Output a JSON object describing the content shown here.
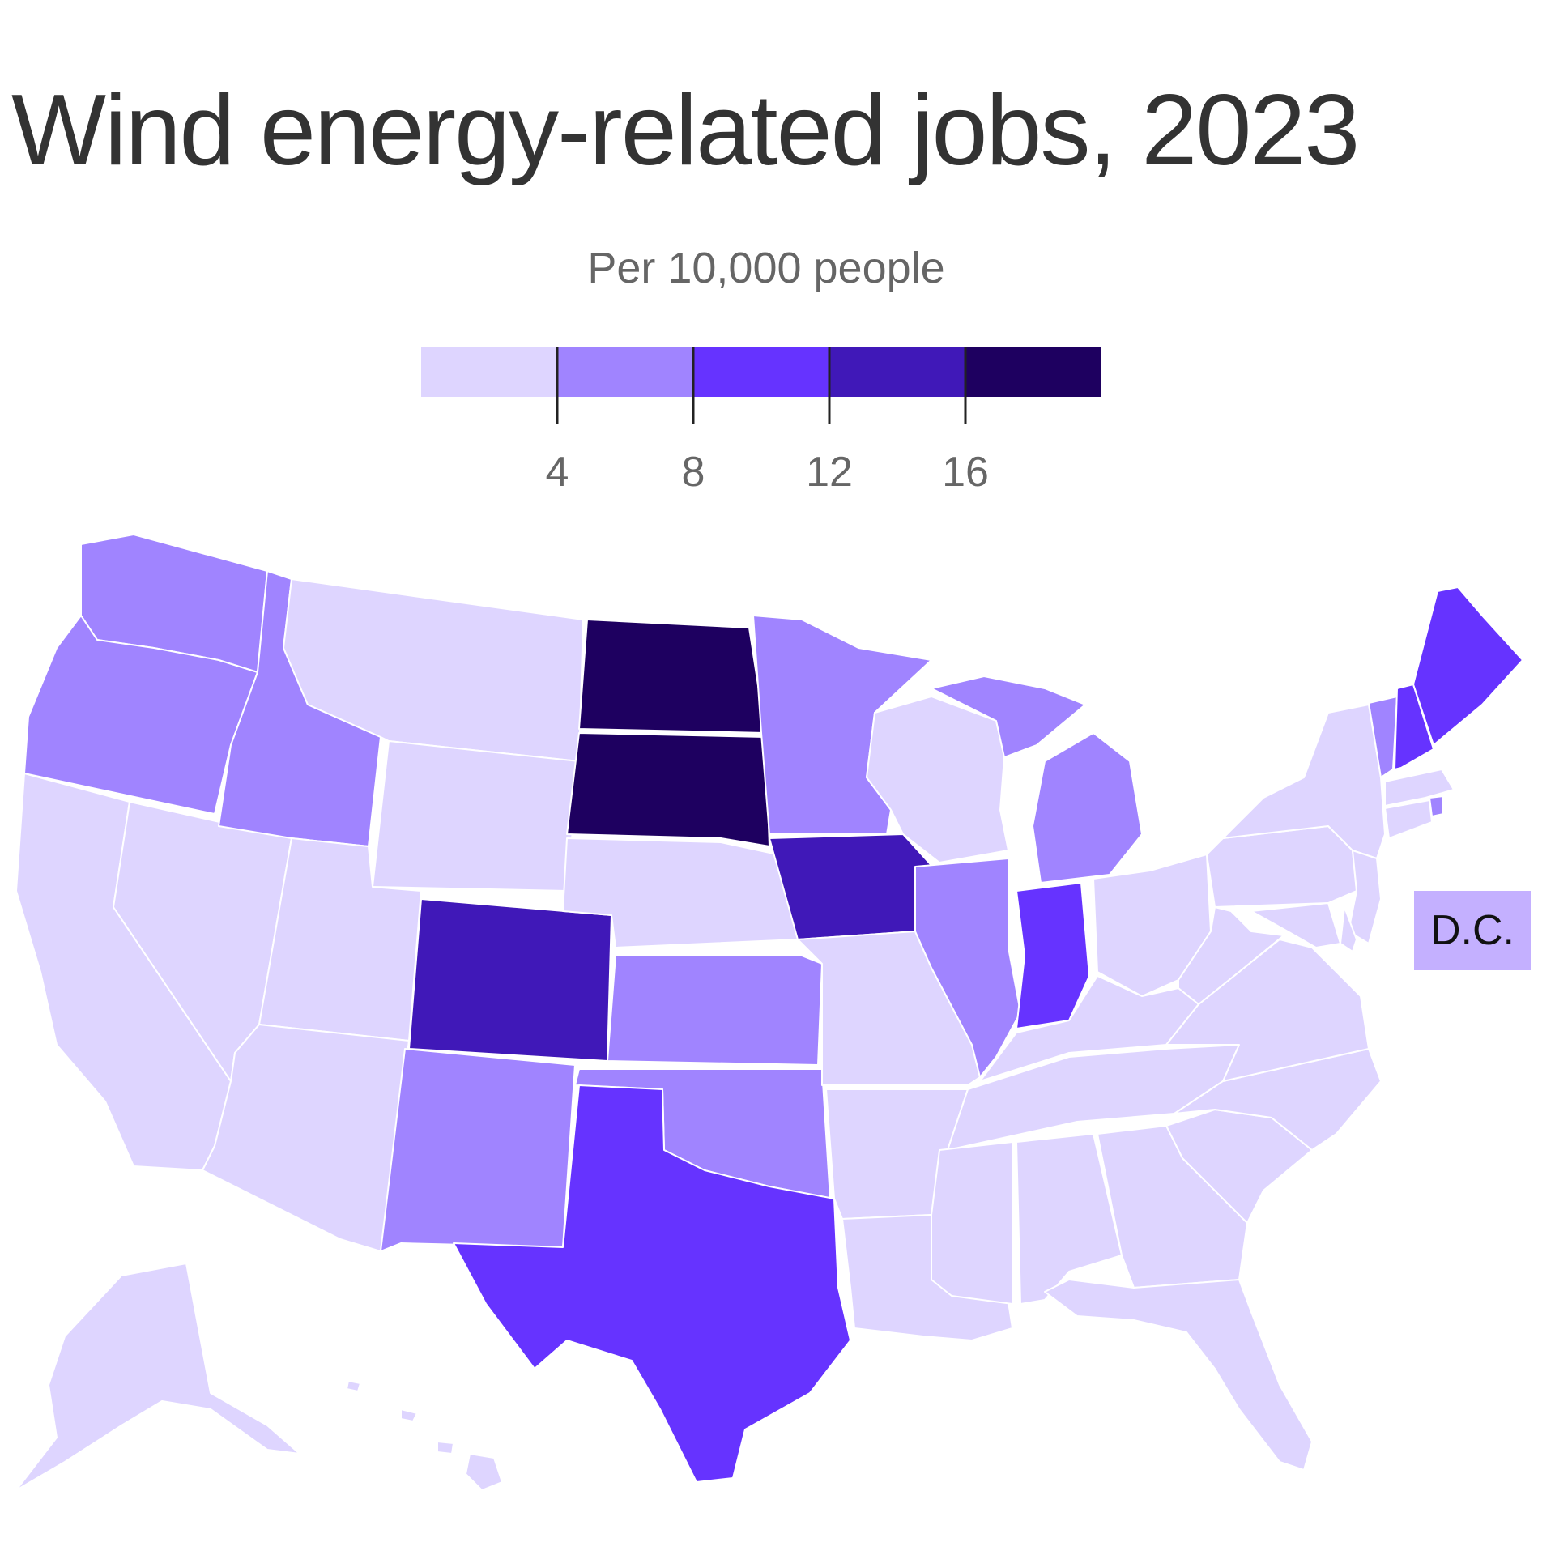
{
  "title": "Wind energy-related jobs, 2023",
  "subtitle": "Per 10,000 people",
  "legend": {
    "bins": [
      {
        "color": "#ded5ff"
      },
      {
        "color": "#a084ff"
      },
      {
        "color": "#6633ff"
      },
      {
        "color": "#4018b8"
      },
      {
        "color": "#1e0060"
      }
    ],
    "ticks": [
      "4",
      "8",
      "12",
      "16"
    ]
  },
  "dc_label": "D.C.",
  "map_data": {
    "type": "choropleth",
    "thresholds": [
      4,
      8,
      12,
      16
    ],
    "states": {
      "WA": 1,
      "OR": 1,
      "CA": 0,
      "NV": 0,
      "ID": 1,
      "MT": 0,
      "WY": 0,
      "UT": 0,
      "AZ": 0,
      "CO": 3,
      "NM": 1,
      "ND": 4,
      "SD": 4,
      "NE": 0,
      "KS": 1,
      "OK": 1,
      "TX": 2,
      "MN": 1,
      "IA": 3,
      "MO": 0,
      "AR": 0,
      "LA": 0,
      "WI": 0,
      "IL": 1,
      "MI": 1,
      "IN": 2,
      "OH": 0,
      "KY": 0,
      "TN": 0,
      "MS": 0,
      "AL": 0,
      "GA": 0,
      "FL": 0,
      "SC": 0,
      "NC": 0,
      "VA": 0,
      "WV": 0,
      "PA": 0,
      "NY": 0,
      "VT": 1,
      "NH": 2,
      "ME": 2,
      "MA": 0,
      "RI": 1,
      "CT": 0,
      "NJ": 0,
      "DE": 0,
      "MD": 0,
      "AK": 0,
      "HI": 0,
      "DC": 0
    }
  }
}
